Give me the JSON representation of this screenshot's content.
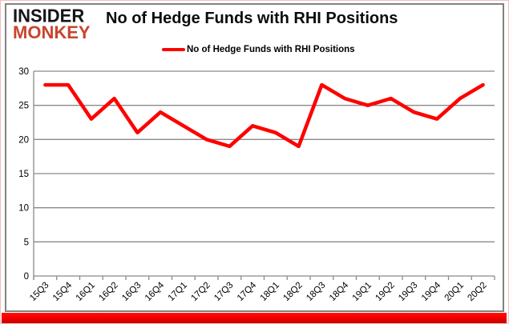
{
  "logo": {
    "line1": "INSIDER",
    "line2": "MONKEY"
  },
  "header": {
    "title": "No of Hedge Funds with RHI Positions"
  },
  "legend": {
    "label": "No of Hedge Funds with RHI Positions"
  },
  "colors": {
    "line": "#ff0000",
    "grid": "#8a8a8a",
    "axis": "#8a8a8a",
    "frame": "#828282",
    "tick_label": "#000000",
    "logo_accent": "#c9442e",
    "bottom_bar_top": "#ff1400",
    "bottom_bar_bottom": "#c40000"
  },
  "chart_data": {
    "type": "line",
    "title": "No of Hedge Funds with RHI Positions",
    "categories": [
      "15Q3",
      "15Q4",
      "16Q1",
      "16Q2",
      "16Q3",
      "16Q4",
      "17Q1",
      "17Q2",
      "17Q3",
      "17Q4",
      "18Q1",
      "18Q2",
      "18Q3",
      "18Q4",
      "19Q1",
      "19Q2",
      "19Q3",
      "19Q4",
      "20Q1",
      "20Q2"
    ],
    "series": [
      {
        "name": "No of Hedge Funds with RHI Positions",
        "color": "#ff0000",
        "values": [
          28,
          28,
          23,
          26,
          21,
          24,
          22,
          20,
          19,
          22,
          21,
          19,
          28,
          26,
          25,
          26,
          24,
          23,
          26,
          28
        ]
      }
    ],
    "xlabel": "",
    "ylabel": "",
    "ylim": [
      0,
      30
    ],
    "ytick_interval": 5,
    "grid": true,
    "legend_position": "top-center"
  }
}
